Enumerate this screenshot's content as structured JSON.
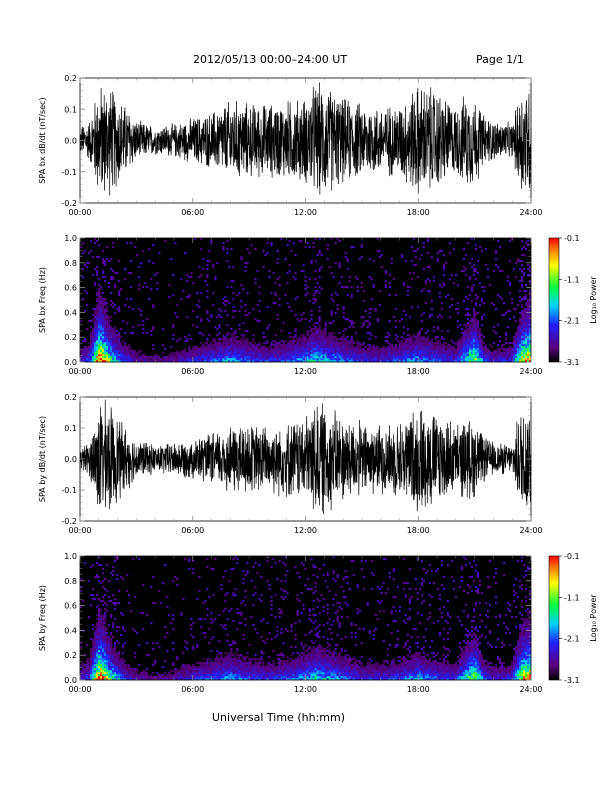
{
  "header": {
    "title": "2012/05/13  00:00–24:00 UT",
    "page": "Page 1/1"
  },
  "footer": {
    "xlabel": "Universal Time (hh:mm)"
  },
  "colors": {
    "trace": "#000000",
    "background": "#ffffff"
  },
  "chart_data": [
    {
      "type": "line",
      "ylabel": "SPA bx dB/dt (nT/sec)",
      "xlim": [
        "00:00",
        "24:00"
      ],
      "ylim": [
        -0.2,
        0.2
      ],
      "yticks": [
        "-0.2",
        "-0.1",
        "0.0",
        "0.1",
        "0.2"
      ],
      "xticks": [
        "00:00",
        "06:00",
        "12:00",
        "18:00",
        "24:00"
      ],
      "envelope": {
        "x_hours": [
          0,
          0.5,
          1,
          1.2,
          1.5,
          2,
          2.5,
          3,
          4,
          5,
          6,
          7,
          8,
          8.5,
          9,
          10,
          11,
          12,
          12.5,
          13,
          14,
          15,
          16,
          17,
          18,
          19,
          20,
          20.5,
          21,
          21.5,
          22,
          23,
          23.5,
          24
        ],
        "amplitude": [
          0.05,
          0.07,
          0.2,
          0.2,
          0.2,
          0.16,
          0.12,
          0.07,
          0.05,
          0.06,
          0.08,
          0.1,
          0.14,
          0.14,
          0.13,
          0.13,
          0.14,
          0.15,
          0.2,
          0.2,
          0.15,
          0.13,
          0.12,
          0.13,
          0.2,
          0.18,
          0.12,
          0.16,
          0.16,
          0.09,
          0.07,
          0.06,
          0.2,
          0.2
        ]
      }
    },
    {
      "type": "heatmap",
      "ylabel": "SPA bx Freq (Hz)",
      "xlim": [
        "00:00",
        "24:00"
      ],
      "ylim": [
        0,
        1.0
      ],
      "yticks": [
        "0.0",
        "0.2",
        "0.4",
        "0.6",
        "0.8",
        "1.0"
      ],
      "xticks": [
        "00:00",
        "06:00",
        "12:00",
        "18:00",
        "24:00"
      ],
      "colorbar": {
        "label": "Log₁₀ Power",
        "range": [
          -3.1,
          -0.1
        ],
        "ticks": [
          "-0.1",
          "-1.1",
          "-2.1",
          "-3.1"
        ]
      },
      "activity": {
        "x_hours": [
          0,
          0.5,
          1,
          1.2,
          1.5,
          2,
          2.5,
          3,
          4,
          5,
          6,
          7,
          8,
          8.5,
          9,
          10,
          11,
          12,
          12.5,
          13,
          14,
          15,
          16,
          17,
          18,
          19,
          20,
          20.5,
          21,
          21.5,
          22,
          23,
          23.5,
          24
        ],
        "level": [
          0.25,
          0.35,
          1.0,
          0.95,
          0.7,
          0.45,
          0.3,
          0.2,
          0.15,
          0.18,
          0.3,
          0.35,
          0.45,
          0.4,
          0.35,
          0.3,
          0.35,
          0.45,
          0.55,
          0.5,
          0.4,
          0.3,
          0.28,
          0.35,
          0.45,
          0.35,
          0.3,
          0.55,
          0.75,
          0.35,
          0.25,
          0.3,
          0.8,
          0.95
        ]
      }
    },
    {
      "type": "line",
      "ylabel": "SPA by dB/dt (nT/sec)",
      "xlim": [
        "00:00",
        "24:00"
      ],
      "ylim": [
        -0.2,
        0.2
      ],
      "yticks": [
        "-0.2",
        "-0.1",
        "0.0",
        "0.1",
        "0.2"
      ],
      "xticks": [
        "00:00",
        "06:00",
        "12:00",
        "18:00",
        "24:00"
      ],
      "envelope": {
        "x_hours": [
          0,
          0.5,
          1,
          1.2,
          1.5,
          2,
          2.5,
          3,
          4,
          5,
          6,
          7,
          8,
          8.5,
          9,
          10,
          11,
          12,
          12.5,
          13,
          14,
          15,
          16,
          17,
          18,
          19,
          20,
          20.5,
          21,
          21.5,
          22,
          23,
          23.5,
          24
        ],
        "amplitude": [
          0.04,
          0.06,
          0.2,
          0.2,
          0.2,
          0.15,
          0.11,
          0.07,
          0.05,
          0.06,
          0.07,
          0.09,
          0.12,
          0.13,
          0.12,
          0.12,
          0.13,
          0.15,
          0.2,
          0.2,
          0.15,
          0.13,
          0.12,
          0.13,
          0.19,
          0.17,
          0.12,
          0.14,
          0.14,
          0.08,
          0.06,
          0.05,
          0.2,
          0.2
        ]
      }
    },
    {
      "type": "heatmap",
      "ylabel": "SPA by Freq (Hz)",
      "xlim": [
        "00:00",
        "24:00"
      ],
      "ylim": [
        0,
        1.0
      ],
      "yticks": [
        "0.0",
        "0.2",
        "0.4",
        "0.6",
        "0.8",
        "1.0"
      ],
      "xticks": [
        "00:00",
        "06:00",
        "12:00",
        "18:00",
        "24:00"
      ],
      "colorbar": {
        "label": "Log₁₀ Power",
        "range": [
          -3.1,
          -0.1
        ],
        "ticks": [
          "-0.1",
          "-1.1",
          "-2.1",
          "-3.1"
        ]
      },
      "activity": {
        "x_hours": [
          0,
          0.5,
          1,
          1.2,
          1.5,
          2,
          2.5,
          3,
          4,
          5,
          6,
          7,
          8,
          8.5,
          9,
          10,
          11,
          12,
          12.5,
          13,
          14,
          15,
          16,
          17,
          18,
          19,
          20,
          20.5,
          21,
          21.5,
          22,
          23,
          23.5,
          24
        ],
        "level": [
          0.25,
          0.35,
          1.0,
          0.95,
          0.7,
          0.45,
          0.3,
          0.2,
          0.15,
          0.18,
          0.3,
          0.35,
          0.45,
          0.4,
          0.35,
          0.3,
          0.35,
          0.45,
          0.55,
          0.5,
          0.4,
          0.3,
          0.28,
          0.35,
          0.45,
          0.35,
          0.3,
          0.55,
          0.75,
          0.35,
          0.25,
          0.3,
          0.8,
          0.95
        ]
      }
    }
  ]
}
